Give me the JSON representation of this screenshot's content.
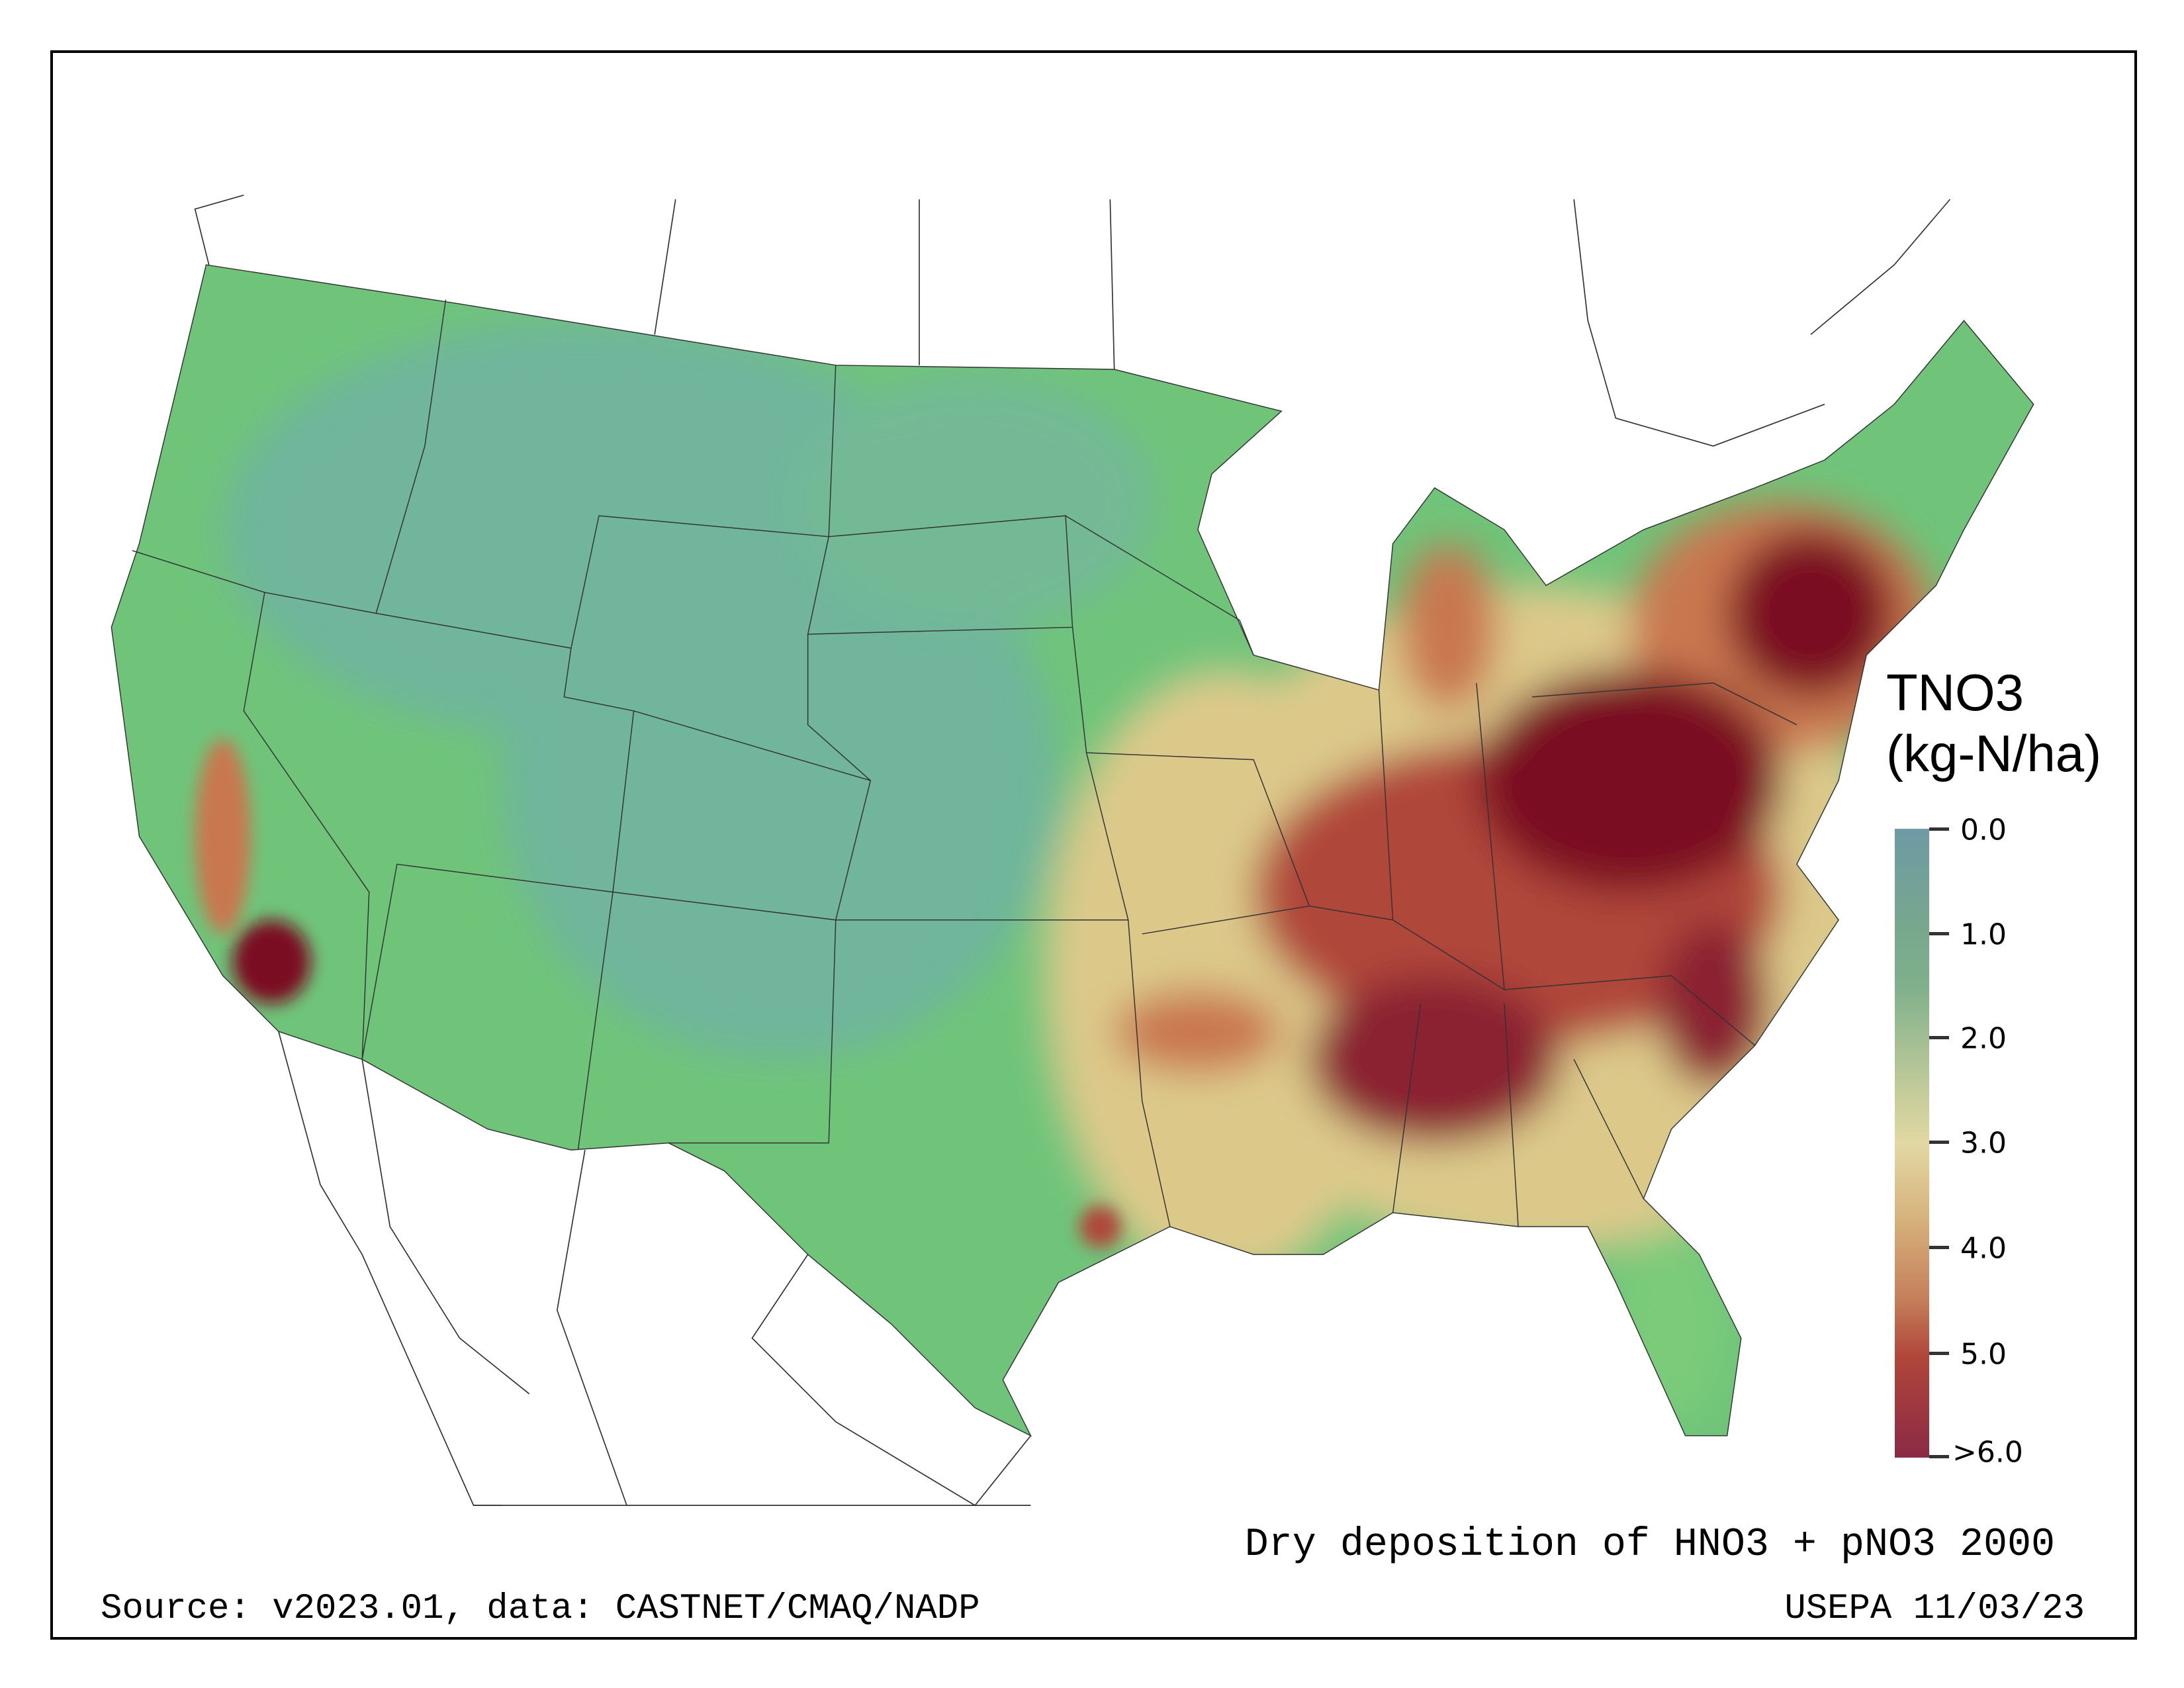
{
  "title": "Dry deposition of HNO3 + pNO3 2000",
  "source": "Source: v2023.01, data: CASTNET/CMAQ/NADP",
  "credit": "USEPA 11/03/23",
  "legend": {
    "title": "TNO3",
    "units": "(kg-N/ha)",
    "ticks": [
      "0.0",
      "1.0",
      "2.0",
      "3.0",
      "4.0",
      "5.0",
      ">6.0"
    ],
    "colors": {
      "low": "#6e9aa4",
      "mid_low": "#77a88e",
      "mid": "#e2d8a2",
      "high": "#b0463a",
      "max": "#8a2a45"
    }
  },
  "map_colors": {
    "background_land": "#6fc47a",
    "mountain_west": "#6fb59c",
    "moderate": "#dcc98a",
    "elevated": "#c9774f",
    "high": "#7a0f22"
  }
}
